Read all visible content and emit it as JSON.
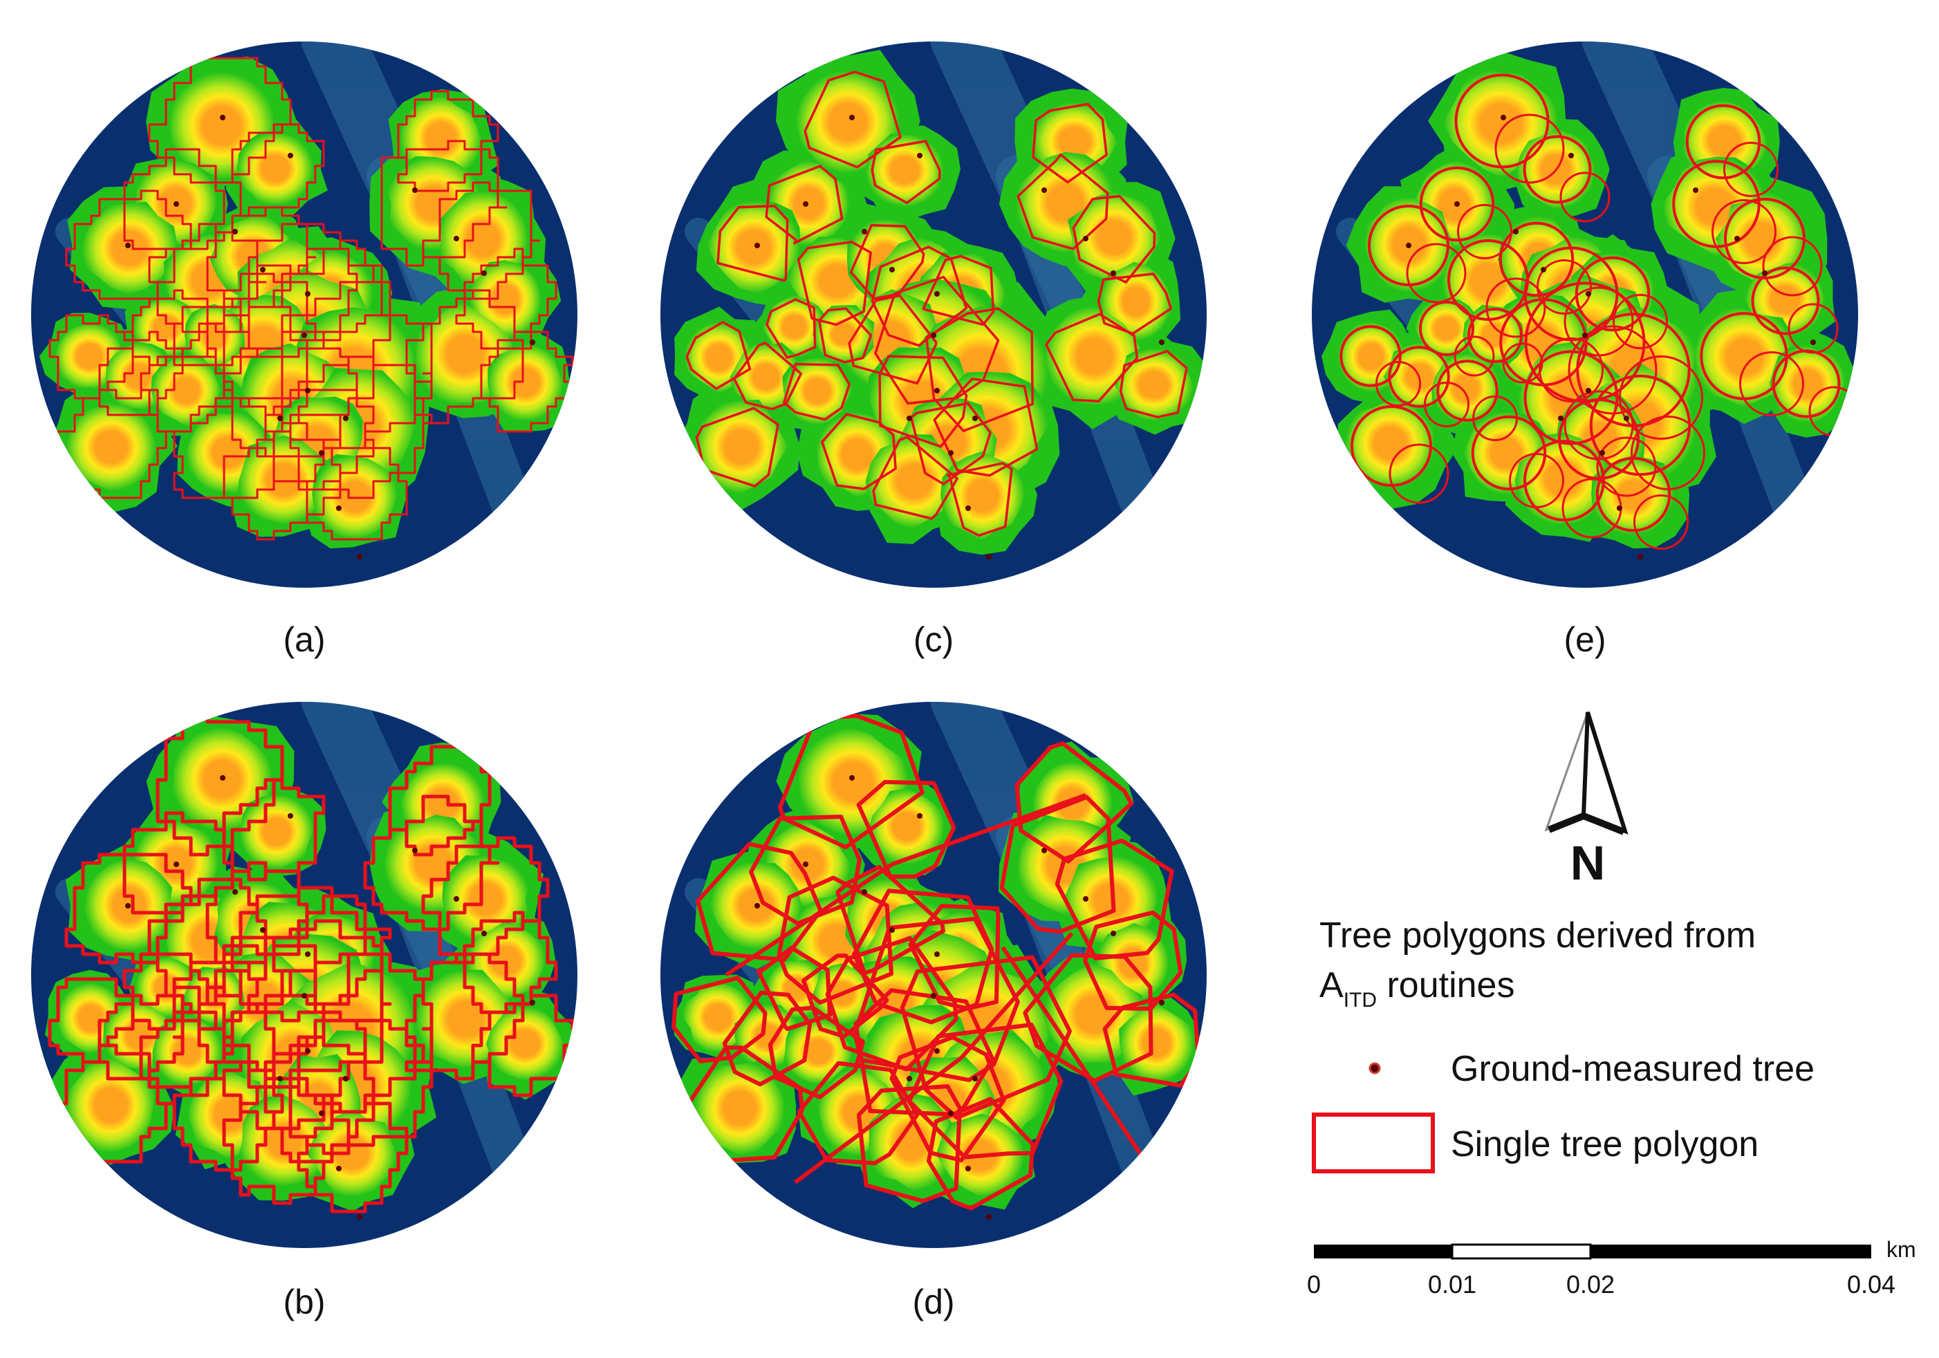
{
  "panels": [
    {
      "id": "a",
      "label": "(a)",
      "style": "irregular"
    },
    {
      "id": "b",
      "label": "(b)",
      "style": "watershed"
    },
    {
      "id": "c",
      "label": "(c)",
      "style": "convex"
    },
    {
      "id": "d",
      "label": "(d)",
      "style": "voronoi"
    },
    {
      "id": "e",
      "label": "(e)",
      "style": "circles"
    }
  ],
  "legend": {
    "title_line1": "Tree polygons derived from",
    "title_line2_main": "A",
    "title_line2_sub": "ITD",
    "title_line2_rest": " routines",
    "ground_tree_label": "Ground-measured tree",
    "polygon_label": "Single tree polygon"
  },
  "north_arrow": {
    "letter": "N"
  },
  "scale_bar": {
    "unit": "km",
    "ticks": [
      "0",
      "0.01",
      "0.02",
      "0.04"
    ]
  },
  "colors": {
    "background": "#0a2f6e",
    "gap_teal": "#2f6f9e",
    "canopy_green": "#22c21a",
    "canopy_lime": "#b8e81c",
    "canopy_yellow": "#ffe81a",
    "crown_orange": "#ffa21e",
    "polygon_red": "#e8101a",
    "tree_point": "#5a0000"
  }
}
